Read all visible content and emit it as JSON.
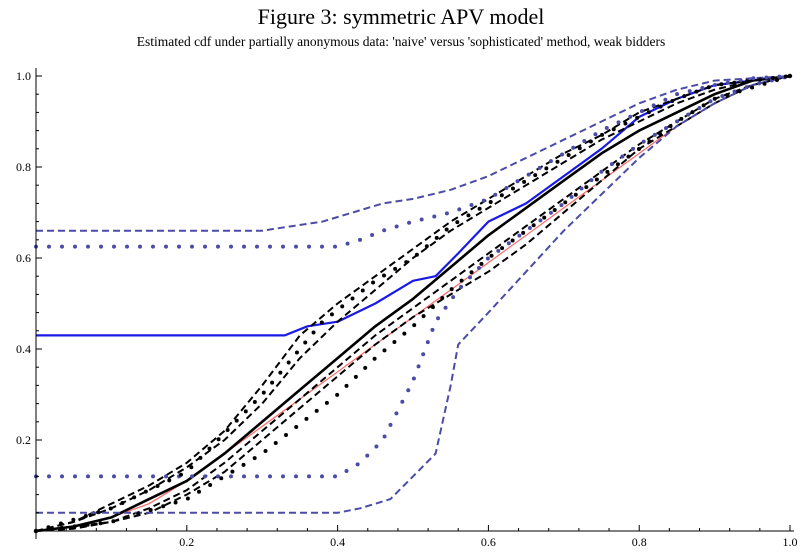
{
  "title": "Figure 3: symmetric APV model",
  "subtitle": "Estimated cdf under partially anonymous data: 'naive' versus 'sophisticated' method, weak bidders",
  "colors": {
    "black": "#000000",
    "blue": "#1a1ae6",
    "navy": "#4b4ba8",
    "red": "#ff6666"
  },
  "chart_data": {
    "type": "line",
    "xlim": [
      0,
      1
    ],
    "ylim": [
      0,
      1
    ],
    "x_ticks": [
      "0.2",
      "0.4",
      "0.6",
      "0.8",
      "1.0"
    ],
    "y_ticks": [
      "0.2",
      "0.4",
      "0.6",
      "0.8",
      "1.0"
    ],
    "grid": false,
    "series": [
      {
        "id": "red-line",
        "color": "#ff6666",
        "style": "solid",
        "width": 1.2,
        "points": [
          [
            0,
            0
          ],
          [
            0.05,
            0.01
          ],
          [
            0.1,
            0.03
          ],
          [
            0.15,
            0.06
          ],
          [
            0.2,
            0.11
          ],
          [
            0.25,
            0.17
          ],
          [
            0.3,
            0.23
          ],
          [
            0.35,
            0.29
          ],
          [
            0.4,
            0.35
          ],
          [
            0.45,
            0.41
          ],
          [
            0.5,
            0.47
          ],
          [
            0.55,
            0.53
          ],
          [
            0.6,
            0.59
          ],
          [
            0.65,
            0.65
          ],
          [
            0.7,
            0.71
          ],
          [
            0.75,
            0.77
          ],
          [
            0.8,
            0.83
          ],
          [
            0.85,
            0.89
          ],
          [
            0.9,
            0.94
          ],
          [
            0.95,
            0.98
          ],
          [
            1,
            1
          ]
        ]
      },
      {
        "id": "black-solid",
        "color": "#000000",
        "style": "solid",
        "width": 2.6,
        "points": [
          [
            0,
            0
          ],
          [
            0.05,
            0.01
          ],
          [
            0.1,
            0.03
          ],
          [
            0.15,
            0.07
          ],
          [
            0.2,
            0.11
          ],
          [
            0.25,
            0.17
          ],
          [
            0.3,
            0.24
          ],
          [
            0.35,
            0.31
          ],
          [
            0.4,
            0.38
          ],
          [
            0.45,
            0.45
          ],
          [
            0.5,
            0.51
          ],
          [
            0.55,
            0.58
          ],
          [
            0.6,
            0.65
          ],
          [
            0.65,
            0.71
          ],
          [
            0.7,
            0.77
          ],
          [
            0.75,
            0.83
          ],
          [
            0.8,
            0.88
          ],
          [
            0.85,
            0.92
          ],
          [
            0.9,
            0.96
          ],
          [
            0.95,
            0.99
          ],
          [
            1,
            1
          ]
        ]
      },
      {
        "id": "blue-solid",
        "color": "#1a1ae6",
        "style": "solid",
        "width": 2.2,
        "points": [
          [
            0,
            0.43
          ],
          [
            0.1,
            0.43
          ],
          [
            0.2,
            0.43
          ],
          [
            0.3,
            0.43
          ],
          [
            0.33,
            0.43
          ],
          [
            0.36,
            0.45
          ],
          [
            0.4,
            0.46
          ],
          [
            0.45,
            0.5
          ],
          [
            0.5,
            0.55
          ],
          [
            0.53,
            0.56
          ],
          [
            0.56,
            0.61
          ],
          [
            0.6,
            0.68
          ],
          [
            0.65,
            0.72
          ],
          [
            0.7,
            0.78
          ],
          [
            0.75,
            0.84
          ],
          [
            0.8,
            0.91
          ],
          [
            0.85,
            0.95
          ],
          [
            0.9,
            0.98
          ],
          [
            0.95,
            0.99
          ],
          [
            1,
            1
          ]
        ]
      },
      {
        "id": "black-dashed-upper",
        "color": "#000000",
        "style": "dashed",
        "width": 2,
        "points": [
          [
            0,
            0
          ],
          [
            0.05,
            0.02
          ],
          [
            0.1,
            0.06
          ],
          [
            0.15,
            0.1
          ],
          [
            0.2,
            0.15
          ],
          [
            0.25,
            0.22
          ],
          [
            0.3,
            0.32
          ],
          [
            0.35,
            0.43
          ],
          [
            0.4,
            0.5
          ],
          [
            0.45,
            0.56
          ],
          [
            0.5,
            0.62
          ],
          [
            0.55,
            0.68
          ],
          [
            0.6,
            0.73
          ],
          [
            0.65,
            0.78
          ],
          [
            0.7,
            0.83
          ],
          [
            0.75,
            0.87
          ],
          [
            0.8,
            0.92
          ],
          [
            0.85,
            0.95
          ],
          [
            0.9,
            0.98
          ],
          [
            0.95,
            0.99
          ],
          [
            1,
            1
          ]
        ]
      },
      {
        "id": "black-dashed-upper2",
        "color": "#000000",
        "style": "dashed",
        "width": 2,
        "points": [
          [
            0,
            0
          ],
          [
            0.05,
            0.02
          ],
          [
            0.1,
            0.05
          ],
          [
            0.15,
            0.09
          ],
          [
            0.2,
            0.14
          ],
          [
            0.25,
            0.2
          ],
          [
            0.3,
            0.28
          ],
          [
            0.35,
            0.38
          ],
          [
            0.4,
            0.46
          ],
          [
            0.45,
            0.53
          ],
          [
            0.5,
            0.6
          ],
          [
            0.55,
            0.66
          ],
          [
            0.6,
            0.71
          ],
          [
            0.65,
            0.76
          ],
          [
            0.7,
            0.81
          ],
          [
            0.75,
            0.86
          ],
          [
            0.8,
            0.9
          ],
          [
            0.85,
            0.94
          ],
          [
            0.9,
            0.97
          ],
          [
            0.95,
            0.99
          ],
          [
            1,
            1
          ]
        ]
      },
      {
        "id": "black-dashed-lower",
        "color": "#000000",
        "style": "dashed",
        "width": 2,
        "points": [
          [
            0,
            0
          ],
          [
            0.05,
            0.005
          ],
          [
            0.1,
            0.02
          ],
          [
            0.15,
            0.04
          ],
          [
            0.2,
            0.08
          ],
          [
            0.25,
            0.13
          ],
          [
            0.3,
            0.2
          ],
          [
            0.35,
            0.27
          ],
          [
            0.4,
            0.34
          ],
          [
            0.45,
            0.41
          ],
          [
            0.5,
            0.47
          ],
          [
            0.55,
            0.52
          ],
          [
            0.6,
            0.57
          ],
          [
            0.65,
            0.63
          ],
          [
            0.7,
            0.7
          ],
          [
            0.75,
            0.77
          ],
          [
            0.8,
            0.84
          ],
          [
            0.85,
            0.89
          ],
          [
            0.9,
            0.94
          ],
          [
            0.95,
            0.98
          ],
          [
            1,
            1
          ]
        ]
      },
      {
        "id": "black-dashed-lower2",
        "color": "#000000",
        "style": "dashed",
        "width": 2,
        "points": [
          [
            0,
            0
          ],
          [
            0.05,
            0.01
          ],
          [
            0.1,
            0.02
          ],
          [
            0.15,
            0.05
          ],
          [
            0.2,
            0.09
          ],
          [
            0.25,
            0.15
          ],
          [
            0.3,
            0.22
          ],
          [
            0.35,
            0.29
          ],
          [
            0.4,
            0.36
          ],
          [
            0.45,
            0.43
          ],
          [
            0.5,
            0.49
          ],
          [
            0.55,
            0.55
          ],
          [
            0.6,
            0.61
          ],
          [
            0.65,
            0.67
          ],
          [
            0.7,
            0.73
          ],
          [
            0.75,
            0.79
          ],
          [
            0.8,
            0.85
          ],
          [
            0.85,
            0.9
          ],
          [
            0.9,
            0.95
          ],
          [
            0.95,
            0.98
          ],
          [
            1,
            1
          ]
        ]
      },
      {
        "id": "navy-dashed-upper",
        "color": "#4b4ba8",
        "style": "dashed",
        "width": 2,
        "points": [
          [
            0,
            0.66
          ],
          [
            0.1,
            0.66
          ],
          [
            0.2,
            0.66
          ],
          [
            0.3,
            0.66
          ],
          [
            0.34,
            0.67
          ],
          [
            0.38,
            0.68
          ],
          [
            0.42,
            0.7
          ],
          [
            0.46,
            0.72
          ],
          [
            0.5,
            0.73
          ],
          [
            0.55,
            0.75
          ],
          [
            0.6,
            0.78
          ],
          [
            0.65,
            0.82
          ],
          [
            0.7,
            0.86
          ],
          [
            0.75,
            0.9
          ],
          [
            0.8,
            0.94
          ],
          [
            0.85,
            0.97
          ],
          [
            0.9,
            0.99
          ],
          [
            0.95,
            0.995
          ],
          [
            1,
            1
          ]
        ]
      },
      {
        "id": "navy-dashed-lower",
        "color": "#4b4ba8",
        "style": "dashed",
        "width": 2,
        "points": [
          [
            0,
            0.04
          ],
          [
            0.1,
            0.04
          ],
          [
            0.2,
            0.04
          ],
          [
            0.3,
            0.04
          ],
          [
            0.4,
            0.04
          ],
          [
            0.43,
            0.05
          ],
          [
            0.47,
            0.07
          ],
          [
            0.5,
            0.12
          ],
          [
            0.53,
            0.17
          ],
          [
            0.55,
            0.32
          ],
          [
            0.56,
            0.41
          ],
          [
            0.6,
            0.48
          ],
          [
            0.65,
            0.57
          ],
          [
            0.7,
            0.66
          ],
          [
            0.75,
            0.74
          ],
          [
            0.8,
            0.82
          ],
          [
            0.85,
            0.89
          ],
          [
            0.9,
            0.94
          ],
          [
            0.95,
            0.98
          ],
          [
            1,
            1
          ]
        ]
      },
      {
        "id": "navy-dotted-upper",
        "color": "#4b4ba8",
        "style": "dotted",
        "width": 4,
        "points": [
          [
            0,
            0.625
          ],
          [
            0.1,
            0.625
          ],
          [
            0.2,
            0.625
          ],
          [
            0.3,
            0.625
          ],
          [
            0.4,
            0.625
          ],
          [
            0.43,
            0.64
          ],
          [
            0.46,
            0.66
          ],
          [
            0.5,
            0.68
          ],
          [
            0.55,
            0.7
          ],
          [
            0.6,
            0.73
          ],
          [
            0.65,
            0.78
          ],
          [
            0.7,
            0.83
          ],
          [
            0.75,
            0.88
          ],
          [
            0.8,
            0.92
          ],
          [
            0.85,
            0.96
          ],
          [
            0.9,
            0.98
          ],
          [
            0.95,
            0.995
          ],
          [
            1,
            1
          ]
        ]
      },
      {
        "id": "navy-dotted-lower",
        "color": "#4b4ba8",
        "style": "dotted",
        "width": 4,
        "points": [
          [
            0,
            0.12
          ],
          [
            0.1,
            0.12
          ],
          [
            0.2,
            0.12
          ],
          [
            0.3,
            0.12
          ],
          [
            0.4,
            0.12
          ],
          [
            0.43,
            0.15
          ],
          [
            0.46,
            0.2
          ],
          [
            0.5,
            0.33
          ],
          [
            0.53,
            0.46
          ],
          [
            0.56,
            0.53
          ],
          [
            0.6,
            0.6
          ],
          [
            0.65,
            0.66
          ],
          [
            0.7,
            0.72
          ],
          [
            0.75,
            0.79
          ],
          [
            0.8,
            0.85
          ],
          [
            0.85,
            0.9
          ],
          [
            0.9,
            0.95
          ],
          [
            0.95,
            0.98
          ],
          [
            1,
            1
          ]
        ]
      },
      {
        "id": "black-dotted-upper",
        "color": "#000000",
        "style": "dotted",
        "width": 4,
        "points": [
          [
            0,
            0
          ],
          [
            0.1,
            0.05
          ],
          [
            0.2,
            0.13
          ],
          [
            0.3,
            0.3
          ],
          [
            0.38,
            0.46
          ],
          [
            0.45,
            0.55
          ],
          [
            0.5,
            0.6
          ],
          [
            0.55,
            0.67
          ],
          [
            0.6,
            0.72
          ],
          [
            0.65,
            0.77
          ],
          [
            0.7,
            0.82
          ],
          [
            0.75,
            0.87
          ],
          [
            0.8,
            0.91
          ],
          [
            0.85,
            0.95
          ],
          [
            0.9,
            0.98
          ],
          [
            1,
            1
          ]
        ]
      },
      {
        "id": "black-dotted-lower",
        "color": "#000000",
        "style": "dotted",
        "width": 4,
        "points": [
          [
            0,
            0
          ],
          [
            0.1,
            0.02
          ],
          [
            0.2,
            0.07
          ],
          [
            0.3,
            0.17
          ],
          [
            0.4,
            0.3
          ],
          [
            0.45,
            0.38
          ],
          [
            0.5,
            0.45
          ],
          [
            0.55,
            0.53
          ],
          [
            0.6,
            0.6
          ],
          [
            0.65,
            0.66
          ],
          [
            0.7,
            0.72
          ],
          [
            0.75,
            0.78
          ],
          [
            0.8,
            0.84
          ],
          [
            0.85,
            0.9
          ],
          [
            0.9,
            0.95
          ],
          [
            1,
            1
          ]
        ]
      }
    ]
  }
}
